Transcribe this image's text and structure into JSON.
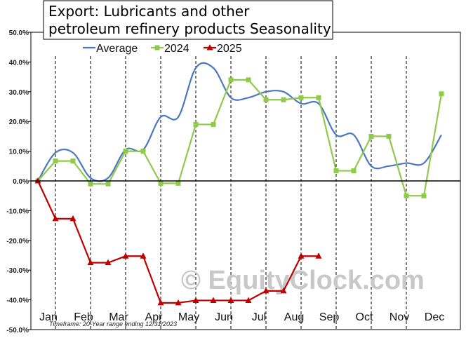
{
  "chart_data": {
    "type": "line",
    "title_lines": [
      "Export: Lubricants and other",
      "petroleum refinery products Seasonality"
    ],
    "categories": [
      "Jan",
      "Feb",
      "Mar",
      "Apr",
      "May",
      "Jun",
      "Jul",
      "Aug",
      "Sep",
      "Oct",
      "Nov",
      "Dec"
    ],
    "yticks": [
      "50.0%",
      "40.0%",
      "30.0%",
      "20.0%",
      "10.0%",
      "0.0%",
      "-10.0%",
      "-20.0%",
      "-30.0%",
      "-40.0%",
      "-50.0%"
    ],
    "ylim": [
      -50,
      50
    ],
    "grid": "vertical dashed month separators",
    "legend_position": "top",
    "series": [
      {
        "name": "Average",
        "color": "#4a78c0",
        "marker": "none",
        "x": [
          0,
          0.5,
          1,
          1.5,
          2,
          2.5,
          3,
          3.5,
          4,
          4.5,
          5,
          5.5,
          6,
          6.5,
          7,
          7.5,
          8,
          8.5,
          9,
          9.5,
          10,
          10.5,
          11,
          11.5
        ],
        "values": [
          0,
          9.5,
          9.5,
          1,
          1,
          10.5,
          10.5,
          21.5,
          21.5,
          38,
          38,
          28,
          28,
          30,
          30,
          26,
          26,
          15.5,
          15.5,
          5,
          5,
          6,
          6,
          15.5
        ]
      },
      {
        "name": "2024",
        "color": "#8fca4b",
        "marker": "square",
        "x": [
          0,
          0.5,
          1,
          1.5,
          2,
          2.5,
          3,
          3.5,
          4,
          4.5,
          5,
          5.5,
          6,
          6.5,
          7,
          7.5,
          8,
          8.5,
          9,
          9.5,
          10,
          10.5,
          11,
          11.5
        ],
        "values": [
          0,
          6.7,
          6.7,
          -1,
          -1,
          10,
          10,
          -0.8,
          -0.8,
          19,
          19,
          34,
          34,
          27.3,
          27.3,
          28,
          28,
          3.4,
          3.4,
          15,
          15,
          -5,
          -5,
          29.3
        ]
      },
      {
        "name": "2025",
        "color": "#c00000",
        "marker": "triangle",
        "x": [
          0,
          0.5,
          1,
          1.5,
          2,
          2.5,
          3,
          3.5,
          4,
          4.5,
          5,
          5.5,
          6,
          6.5,
          7,
          7.5,
          8
        ],
        "values": [
          0,
          -12.7,
          -12.7,
          -27.5,
          -27.5,
          -25.3,
          -25.3,
          -41,
          -41,
          -40.2,
          -40.2,
          -40.2,
          -40.2,
          -37,
          -37,
          -25.3,
          -25.3
        ]
      }
    ]
  },
  "watermark": "© EquityClock.com",
  "footnote": "Timeframe: 20-Year range ending 12/31/2023"
}
